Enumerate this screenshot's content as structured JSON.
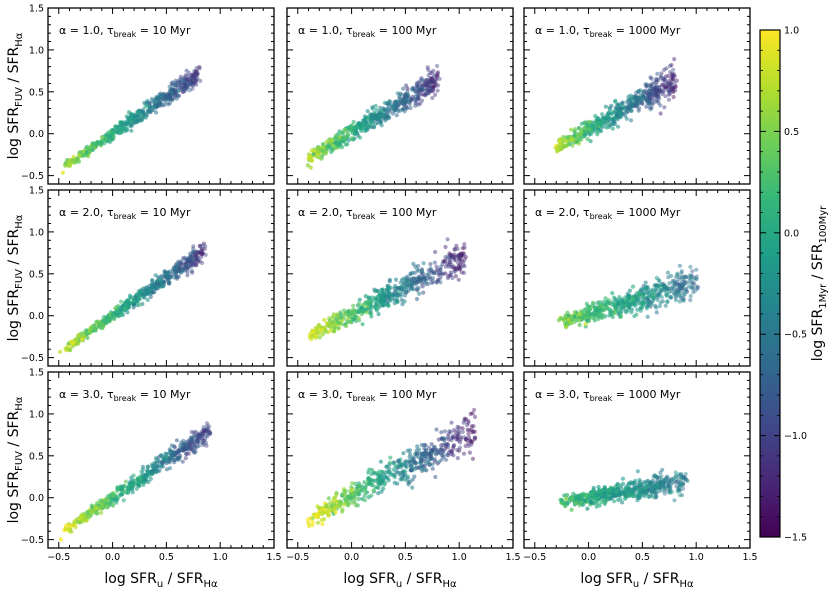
{
  "chart_data": {
    "type": "scatter",
    "layout": "3x3 grid of scatter panels with shared colorbar",
    "xlabel": {
      "prefix": "log  SFR",
      "sub_num": "u",
      "slash": " / SFR",
      "sub_den": "Hα"
    },
    "ylabel": {
      "prefix": "log  SFR",
      "sub_num": "FUV",
      "slash": " / SFR",
      "sub_den": "Hα"
    },
    "xlim": [
      -0.6,
      1.5
    ],
    "ylim": [
      -0.6,
      1.5
    ],
    "xticks": [
      -0.5,
      0.0,
      0.5,
      1.0,
      1.5
    ],
    "xtick_labels": [
      "−0.5",
      "0.0",
      "0.5",
      "1.0",
      "1.5"
    ],
    "yticks": [
      -0.5,
      0.0,
      0.5,
      1.0,
      1.5
    ],
    "ytick_labels": [
      "−0.5",
      "0.0",
      "0.5",
      "1.0",
      "1.5"
    ],
    "colorbar": {
      "label": {
        "prefix": "log SFR",
        "sub_num": "1Myr",
        "slash": " / SFR",
        "sub_den": "100Myr"
      },
      "range": [
        -1.5,
        1.0
      ],
      "ticks": [
        1.0,
        0.5,
        0.0,
        -0.5,
        -1.0,
        -1.5
      ],
      "tick_labels": [
        "1.0",
        "0.5",
        "0.0",
        "−0.5",
        "−1.0",
        "−1.5"
      ],
      "colormap": "viridis",
      "colors": [
        "#440154",
        "#482878",
        "#3e4989",
        "#31688e",
        "#26828e",
        "#1f9e89",
        "#35b779",
        "#6ece58",
        "#b5de2b",
        "#fde725"
      ]
    },
    "panels": [
      {
        "alpha": "1.0",
        "tau": "10 Myr",
        "label_pre": "α = 1.0,  τ",
        "label_sub": "break",
        "label_post": " = 10 Myr",
        "x_range": [
          -0.45,
          0.8
        ],
        "fit": [
          0.0,
          0.88
        ],
        "spread": 0.04,
        "color_range": [
          0.7,
          -1.1
        ]
      },
      {
        "alpha": "1.0",
        "tau": "100 Myr",
        "label_pre": "α = 1.0,  τ",
        "label_sub": "break",
        "label_post": " = 100 Myr",
        "x_range": [
          -0.4,
          0.8
        ],
        "fit": [
          0.02,
          0.78
        ],
        "spread": 0.055,
        "color_range": [
          0.7,
          -1.2
        ]
      },
      {
        "alpha": "1.0",
        "tau": "1000 Myr",
        "label_pre": "α = 1.0,  τ",
        "label_sub": "break",
        "label_post": " = 1000 Myr",
        "x_range": [
          -0.3,
          0.8
        ],
        "fit": [
          0.05,
          0.72
        ],
        "spread": 0.065,
        "color_range": [
          0.7,
          -1.2
        ]
      },
      {
        "alpha": "2.0",
        "tau": "10 Myr",
        "label_pre": "α = 2.0,  τ",
        "label_sub": "break",
        "label_post": " = 10 Myr",
        "x_range": [
          -0.45,
          0.85
        ],
        "fit": [
          0.0,
          0.9
        ],
        "spread": 0.04,
        "color_range": [
          0.8,
          -1.1
        ]
      },
      {
        "alpha": "2.0",
        "tau": "100 Myr",
        "label_pre": "α = 2.0,  τ",
        "label_sub": "break",
        "label_post": " = 100 Myr",
        "x_range": [
          -0.4,
          1.05
        ],
        "fit": [
          0.02,
          0.65
        ],
        "spread": 0.075,
        "color_range": [
          0.9,
          -1.3
        ]
      },
      {
        "alpha": "2.0",
        "tau": "1000 Myr",
        "label_pre": "α = 2.0,  τ",
        "label_sub": "break",
        "label_post": " = 1000 Myr",
        "x_range": [
          -0.25,
          1.0
        ],
        "fit": [
          0.02,
          0.38
        ],
        "spread": 0.07,
        "color_range": [
          0.5,
          -0.6
        ]
      },
      {
        "alpha": "3.0",
        "tau": "10 Myr",
        "label_pre": "α = 3.0,  τ",
        "label_sub": "break",
        "label_post": " = 10 Myr",
        "x_range": [
          -0.45,
          0.9
        ],
        "fit": [
          0.0,
          0.88
        ],
        "spread": 0.045,
        "color_range": [
          0.9,
          -1.1
        ]
      },
      {
        "alpha": "3.0",
        "tau": "100 Myr",
        "label_pre": "α = 3.0,  τ",
        "label_sub": "break",
        "label_post": " = 100 Myr",
        "x_range": [
          -0.4,
          1.15
        ],
        "fit": [
          0.02,
          0.68
        ],
        "spread": 0.085,
        "color_range": [
          1.0,
          -1.4
        ]
      },
      {
        "alpha": "3.0",
        "tau": "1000 Myr",
        "label_pre": "α = 3.0,  τ",
        "label_sub": "break",
        "label_post": " = 1000 Myr",
        "x_range": [
          -0.25,
          0.9
        ],
        "fit": [
          0.0,
          0.22
        ],
        "spread": 0.055,
        "color_range": [
          0.2,
          -0.5
        ]
      }
    ]
  }
}
